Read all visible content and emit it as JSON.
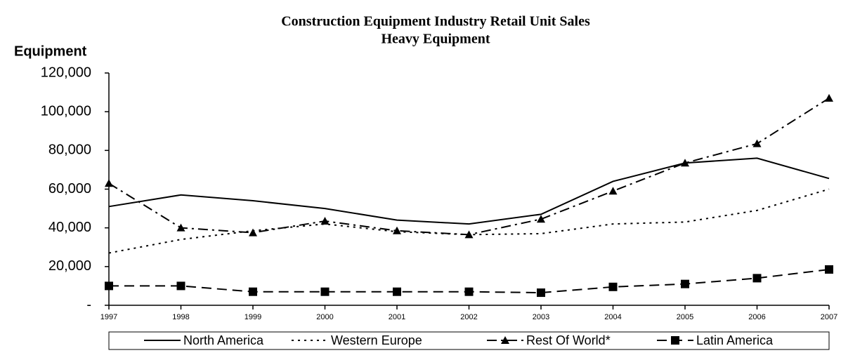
{
  "chart_data": {
    "type": "line",
    "title": "Construction Equipment Industry Retail Unit Sales",
    "subtitle": "Heavy Equipment",
    "y_label": "Equipment",
    "categories": [
      "1997",
      "1998",
      "1999",
      "2000",
      "2001",
      "2002",
      "2003",
      "2004",
      "2005",
      "2006",
      "2007"
    ],
    "series": [
      {
        "name": "North America",
        "color": "#000000",
        "dash": "solid",
        "marker": "none",
        "values": [
          51000,
          57000,
          54000,
          50000,
          44000,
          42000,
          47000,
          64000,
          73500,
          76000,
          65500
        ]
      },
      {
        "name": "Western Europe",
        "color": "#000000",
        "dash": "dotted",
        "marker": "none",
        "values": [
          27000,
          34000,
          38500,
          42000,
          38000,
          36500,
          37000,
          42000,
          43000,
          49000,
          60000
        ]
      },
      {
        "name": "Rest Of World*",
        "color": "#000000",
        "dash": "dashdot",
        "marker": "triangle",
        "values": [
          63000,
          40000,
          37500,
          43500,
          38500,
          36500,
          44500,
          59000,
          73500,
          83500,
          107000
        ]
      },
      {
        "name": "Latin America",
        "color": "#000000",
        "dash": "dashed",
        "marker": "square",
        "values": [
          10000,
          10000,
          7000,
          7000,
          7000,
          7000,
          6500,
          9500,
          11000,
          14000,
          18500
        ]
      }
    ],
    "ylim": [
      0,
      120000
    ],
    "yticks": [
      {
        "value": 0,
        "label": "-"
      },
      {
        "value": 20000,
        "label": "20,000"
      },
      {
        "value": 40000,
        "label": "40,000"
      },
      {
        "value": 60000,
        "label": "60,000"
      },
      {
        "value": 80000,
        "label": "80,000"
      },
      {
        "value": 100000,
        "label": "100,000"
      },
      {
        "value": 120000,
        "label": "120,000"
      }
    ],
    "grid": false,
    "legend": "bottom"
  }
}
